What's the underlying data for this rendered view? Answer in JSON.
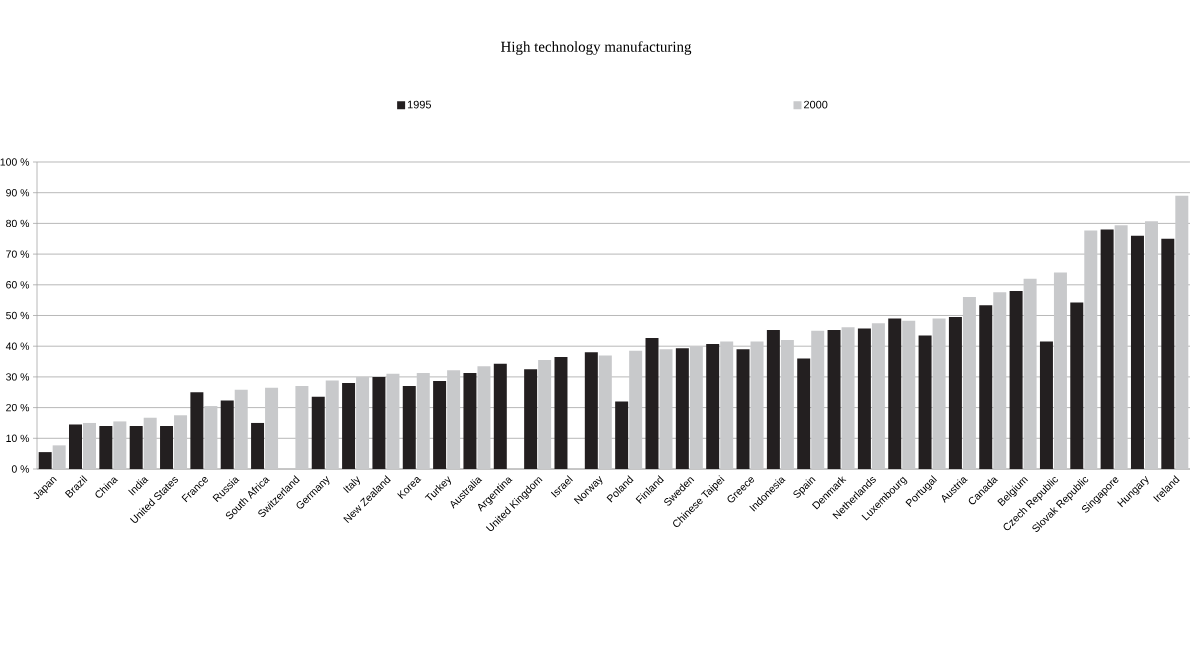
{
  "chart_data": {
    "type": "bar",
    "title": "High technology manufacturing",
    "categories": [
      "Japan",
      "Brazil",
      "China",
      "India",
      "United States",
      "France",
      "Russia",
      "South Africa",
      "Switzerland",
      "Germany",
      "Italy",
      "New Zealand",
      "Korea",
      "Turkey",
      "Australia",
      "Argentina",
      "United Kingdom",
      "Israel",
      "Norway",
      "Poland",
      "Finland",
      "Sweden",
      "Chinese Taipei",
      "Greece",
      "Indonesia",
      "Spain",
      "Denmark",
      "Netherlands",
      "Luxembourg",
      "Portugal",
      "Austria",
      "Canada",
      "Belgium",
      "Czech Republic",
      "Slovak Republic",
      "Singapore",
      "Hungary",
      "Ireland"
    ],
    "series": [
      {
        "name": "1995",
        "color": "#231f20",
        "values": [
          5.5,
          14.5,
          14,
          14,
          14,
          25,
          22.3,
          15,
          null,
          23.5,
          28,
          30,
          27,
          28.7,
          31.3,
          34.3,
          32.5,
          36.5,
          38,
          22,
          42.7,
          39.3,
          40.7,
          39,
          45.3,
          36,
          45.3,
          45.8,
          49,
          43.5,
          49.5,
          53.3,
          58,
          41.5,
          54.2,
          78,
          76,
          75
        ]
      },
      {
        "name": "2000",
        "color": "#c8c9cb",
        "values": [
          7.7,
          15,
          15.5,
          16.7,
          17.5,
          20.5,
          25.8,
          26.5,
          27,
          28.8,
          30,
          31,
          31.3,
          32.2,
          33.5,
          null,
          35.5,
          null,
          37,
          38.5,
          39,
          40,
          41.5,
          41.5,
          42,
          45,
          46.2,
          47.5,
          48.3,
          49,
          56,
          57.6,
          62,
          64,
          77.7,
          79.4,
          80.7,
          89
        ]
      }
    ],
    "ylim": [
      0,
      100
    ],
    "yticks": [
      {
        "value": 0,
        "label": "0 %"
      },
      {
        "value": 10,
        "label": "10 %"
      },
      {
        "value": 20,
        "label": "20 %"
      },
      {
        "value": 30,
        "label": "30 %"
      },
      {
        "value": 40,
        "label": "40 %"
      },
      {
        "value": 50,
        "label": "50 %"
      },
      {
        "value": 60,
        "label": "60 %"
      },
      {
        "value": 70,
        "label": "70 %"
      },
      {
        "value": 80,
        "label": "80 %"
      },
      {
        "value": 90,
        "label": "90 %"
      },
      {
        "value": 100,
        "label": "100 %"
      }
    ],
    "grid": "y",
    "legend": "top"
  }
}
